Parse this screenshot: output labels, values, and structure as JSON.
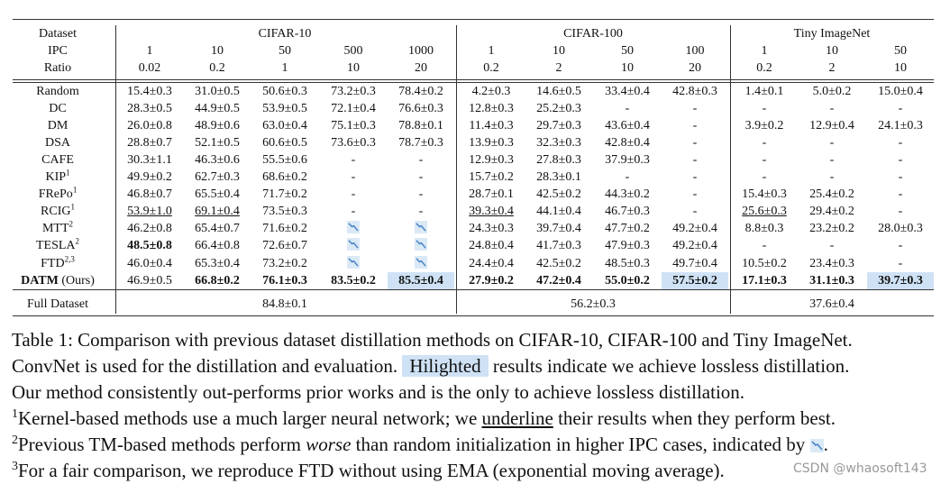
{
  "table": {
    "dataset_label": "Dataset",
    "groups": [
      "CIFAR-10",
      "CIFAR-100",
      "Tiny ImageNet"
    ],
    "ipc_label": "IPC",
    "ipc": [
      "1",
      "10",
      "50",
      "500",
      "1000",
      "1",
      "10",
      "50",
      "100",
      "1",
      "10",
      "50"
    ],
    "ratio_label": "Ratio",
    "ratio": [
      "0.02",
      "0.2",
      "1",
      "10",
      "20",
      "0.2",
      "2",
      "10",
      "20",
      "0.2",
      "2",
      "10"
    ],
    "rows": [
      {
        "name": "Random",
        "cells": [
          "15.4±0.3",
          "31.0±0.5",
          "50.6±0.3",
          "73.2±0.3",
          "78.4±0.2",
          "4.2±0.3",
          "14.6±0.5",
          "33.4±0.4",
          "42.8±0.3",
          "1.4±0.1",
          "5.0±0.2",
          "15.0±0.4"
        ]
      },
      {
        "name": "DC",
        "cells": [
          "28.3±0.5",
          "44.9±0.5",
          "53.9±0.5",
          "72.1±0.4",
          "76.6±0.3",
          "12.8±0.3",
          "25.2±0.3",
          "-",
          "-",
          "-",
          "-",
          "-"
        ]
      },
      {
        "name": "DM",
        "cells": [
          "26.0±0.8",
          "48.9±0.6",
          "63.0±0.4",
          "75.1±0.3",
          "78.8±0.1",
          "11.4±0.3",
          "29.7±0.3",
          "43.6±0.4",
          "-",
          "3.9±0.2",
          "12.9±0.4",
          "24.1±0.3"
        ]
      },
      {
        "name": "DSA",
        "cells": [
          "28.8±0.7",
          "52.1±0.5",
          "60.6±0.5",
          "73.6±0.3",
          "78.7±0.3",
          "13.9±0.3",
          "32.3±0.3",
          "42.8±0.4",
          "-",
          "-",
          "-",
          "-"
        ]
      },
      {
        "name": "CAFE",
        "cells": [
          "30.3±1.1",
          "46.3±0.6",
          "55.5±0.6",
          "-",
          "-",
          "12.9±0.3",
          "27.8±0.3",
          "37.9±0.3",
          "-",
          "-",
          "-",
          "-"
        ]
      },
      {
        "name": "KIP",
        "sup": "1",
        "cells": [
          "49.9±0.2",
          "62.7±0.3",
          "68.6±0.2",
          "-",
          "-",
          "15.7±0.2",
          "28.3±0.1",
          "-",
          "-",
          "-",
          "-",
          "-"
        ]
      },
      {
        "name": "FRePo",
        "sup": "1",
        "cells": [
          "46.8±0.7",
          "65.5±0.4",
          "71.7±0.2",
          "-",
          "-",
          "28.7±0.1",
          "42.5±0.2",
          "44.3±0.2",
          "-",
          "15.4±0.3",
          "25.4±0.2",
          "-"
        ]
      },
      {
        "name": "RCIG",
        "sup": "1",
        "underline": [
          0,
          1,
          5,
          9
        ],
        "cells": [
          "53.9±1.0",
          "69.1±0.4",
          "73.5±0.3",
          "-",
          "-",
          "39.3±0.4",
          "44.1±0.4",
          "46.7±0.3",
          "-",
          "25.6±0.3",
          "29.4±0.2",
          "-"
        ]
      },
      {
        "name": "MTT",
        "sup": "2",
        "cells": [
          "46.2±0.8",
          "65.4±0.7",
          "71.6±0.2",
          null,
          null,
          "24.3±0.3",
          "39.7±0.4",
          "47.7±0.2",
          "49.2±0.4",
          "8.8±0.3",
          "23.2±0.2",
          "28.0±0.3"
        ]
      },
      {
        "name": "TESLA",
        "sup": "2",
        "bold": [
          0
        ],
        "cells": [
          "48.5±0.8",
          "66.4±0.8",
          "72.6±0.7",
          null,
          null,
          "24.8±0.4",
          "41.7±0.3",
          "47.9±0.3",
          "49.2±0.4",
          "-",
          "-",
          "-"
        ]
      },
      {
        "name": "FTD",
        "sup": "2,3",
        "cells": [
          "46.0±0.4",
          "65.3±0.4",
          "73.2±0.2",
          null,
          null,
          "24.4±0.4",
          "42.5±0.2",
          "48.5±0.3",
          "49.7±0.4",
          "10.5±0.2",
          "23.4±0.3",
          "-"
        ]
      },
      {
        "name": "DATM",
        "suffix": "(Ours)",
        "bold": [
          1,
          2,
          3,
          4,
          5,
          6,
          7,
          8,
          9,
          10,
          11
        ],
        "highlight": [
          4,
          8,
          11
        ],
        "cells": [
          "46.9±0.5",
          "66.8±0.2",
          "76.1±0.3",
          "83.5±0.2",
          "85.5±0.4",
          "27.9±0.2",
          "47.2±0.4",
          "55.0±0.2",
          "57.5±0.2",
          "17.1±0.3",
          "31.1±0.3",
          "39.7±0.3"
        ]
      }
    ],
    "full": {
      "name": "Full Dataset",
      "cells": [
        "84.8±0.1",
        "56.2±0.3",
        "37.6±0.4"
      ]
    }
  },
  "caption": {
    "line1": "Table 1: Comparison with previous dataset distillation methods on CIFAR-10, CIFAR-100 and Tiny ImageNet.",
    "line2_a": "ConvNet is used for the distillation and evaluation.",
    "line2_highlight": "Hilighted",
    "line2_b": "results indicate we achieve lossless distillation.",
    "line3": "Our method consistently out-performs prior works and is the only to achieve lossless distillation.",
    "notes": [
      {
        "mark": "1",
        "a": "Kernel-based methods use a much larger neural network; we",
        "em": "underline",
        "b": "their results when they perform best."
      },
      {
        "mark": "2",
        "a": "Previous TM-based methods perform",
        "em": "worse",
        "b": "than random initialization in higher IPC cases, indicated by"
      },
      {
        "mark": "3",
        "a": "For a fair comparison, we reproduce FTD without using EMA (exponential moving average)."
      }
    ]
  },
  "watermark": "CSDN @whaosoft143"
}
